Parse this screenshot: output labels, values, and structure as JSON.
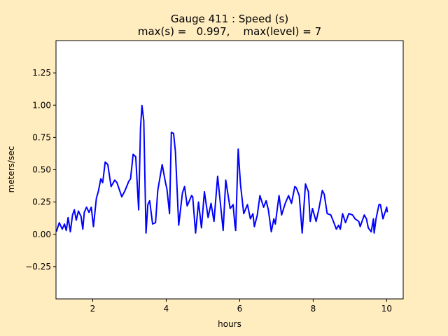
{
  "chart_data": {
    "type": "line",
    "title_line1": "Gauge 411 : Speed (s)",
    "title_line2": "max(s) =   0.997,    max(level) = 7",
    "xlabel": "hours",
    "ylabel": "meters/sec",
    "xlim": [
      1.0,
      10.45
    ],
    "ylim": [
      -0.5,
      1.5
    ],
    "xticks": [
      2,
      4,
      6,
      8,
      10
    ],
    "xtick_labels": [
      "2",
      "4",
      "6",
      "8",
      "10"
    ],
    "yticks": [
      -0.25,
      0.0,
      0.25,
      0.5,
      0.75,
      1.0,
      1.25
    ],
    "ytick_labels": [
      "−0.25",
      "0.00",
      "0.25",
      "0.50",
      "0.75",
      "1.00",
      "1.25"
    ],
    "grid": false,
    "series": [
      {
        "name": "speed",
        "color": "#0000ff",
        "x": [
          1.01,
          1.09,
          1.17,
          1.23,
          1.28,
          1.33,
          1.39,
          1.45,
          1.5,
          1.55,
          1.61,
          1.68,
          1.73,
          1.77,
          1.83,
          1.9,
          1.96,
          2.02,
          2.1,
          2.15,
          2.22,
          2.27,
          2.34,
          2.41,
          2.5,
          2.6,
          2.66,
          2.79,
          2.88,
          2.98,
          3.03,
          3.1,
          3.17,
          3.25,
          3.3,
          3.34,
          3.39,
          3.45,
          3.5,
          3.55,
          3.63,
          3.71,
          3.77,
          3.89,
          3.98,
          4.02,
          4.09,
          4.14,
          4.2,
          4.25,
          4.34,
          4.44,
          4.5,
          4.57,
          4.69,
          4.72,
          4.8,
          4.88,
          4.96,
          5.04,
          5.14,
          5.22,
          5.3,
          5.4,
          5.55,
          5.62,
          5.74,
          5.82,
          5.87,
          5.89,
          5.96,
          6.02,
          6.11,
          6.21,
          6.29,
          6.36,
          6.4,
          6.48,
          6.55,
          6.65,
          6.72,
          6.78,
          6.86,
          6.93,
          6.97,
          7.07,
          7.14,
          7.24,
          7.33,
          7.41,
          7.5,
          7.54,
          7.62,
          7.7,
          7.79,
          7.87,
          7.92,
          7.98,
          8.08,
          8.15,
          8.25,
          8.3,
          8.38,
          8.48,
          8.55,
          8.63,
          8.69,
          8.74,
          8.8,
          8.88,
          8.97,
          9.07,
          9.14,
          9.24,
          9.28,
          9.39,
          9.45,
          9.5,
          9.58,
          9.64,
          9.66,
          9.71,
          9.79,
          9.83,
          9.9,
          10.0,
          10.02
        ],
        "y": [
          0.02,
          0.09,
          0.04,
          0.08,
          0.03,
          0.13,
          0.02,
          0.15,
          0.19,
          0.11,
          0.18,
          0.14,
          0.04,
          0.17,
          0.21,
          0.17,
          0.21,
          0.06,
          0.28,
          0.33,
          0.43,
          0.4,
          0.56,
          0.54,
          0.37,
          0.42,
          0.4,
          0.29,
          0.34,
          0.41,
          0.43,
          0.62,
          0.6,
          0.19,
          0.82,
          0.997,
          0.88,
          0.01,
          0.23,
          0.26,
          0.08,
          0.09,
          0.34,
          0.54,
          0.4,
          0.35,
          0.16,
          0.79,
          0.78,
          0.64,
          0.07,
          0.32,
          0.37,
          0.22,
          0.3,
          0.29,
          0.01,
          0.25,
          0.05,
          0.33,
          0.13,
          0.24,
          0.1,
          0.45,
          0.03,
          0.42,
          0.2,
          0.23,
          0.07,
          0.03,
          0.66,
          0.39,
          0.16,
          0.23,
          0.12,
          0.16,
          0.06,
          0.15,
          0.3,
          0.21,
          0.26,
          0.19,
          0.02,
          0.12,
          0.08,
          0.3,
          0.15,
          0.24,
          0.3,
          0.24,
          0.37,
          0.36,
          0.3,
          0.01,
          0.39,
          0.33,
          0.1,
          0.2,
          0.1,
          0.19,
          0.34,
          0.31,
          0.16,
          0.15,
          0.1,
          0.04,
          0.07,
          0.04,
          0.16,
          0.09,
          0.16,
          0.15,
          0.12,
          0.1,
          0.06,
          0.15,
          0.12,
          0.05,
          0.02,
          0.12,
          0.01,
          0.12,
          0.23,
          0.23,
          0.12,
          0.21,
          0.17
        ]
      }
    ]
  }
}
